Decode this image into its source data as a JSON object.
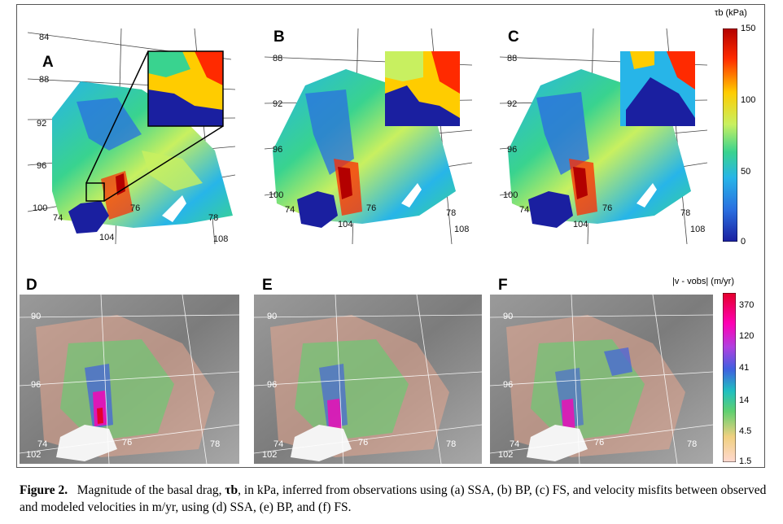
{
  "figure": {
    "panels_top": [
      "A",
      "B",
      "C"
    ],
    "panels_bottom": [
      "D",
      "E",
      "F"
    ],
    "top_lat_labels": [
      "84",
      "88",
      "92",
      "96",
      "100"
    ],
    "top_lon_labels": [
      "74",
      "76",
      "78",
      "104",
      "108"
    ],
    "bottom_lat_labels": [
      "90",
      "96",
      "102"
    ],
    "bottom_lon_labels": [
      "74",
      "76",
      "78"
    ],
    "colorbar_top": {
      "title": "τb (kPa)",
      "ticks": [
        "150",
        "100",
        "50",
        "0"
      ],
      "colors": [
        "#b30000",
        "#ff2a00",
        "#ffcc00",
        "#c8f060",
        "#39d38f",
        "#27b5e8",
        "#2a6fe0",
        "#1a1fa0"
      ]
    },
    "colorbar_bottom": {
      "title": "|v - vobs| (m/yr)",
      "ticks": [
        "370",
        "120",
        "41",
        "14",
        "4.5",
        "1.5"
      ],
      "colors": [
        "#e5002a",
        "#ff00b4",
        "#b040e0",
        "#4060e0",
        "#20c0c0",
        "#60d070",
        "#f0d080",
        "#ffd8d0"
      ]
    }
  },
  "caption": {
    "label": "Figure 2.",
    "text_1": "Magnitude of the basal drag,",
    "symbol": "τb",
    "text_2": ", in kPa, inferred from observations using (a) SSA, (b) BP, (c) FS, and velocity misfits between observed and modeled velocities in m/yr, using (d) SSA, (e) BP, and (f) FS."
  }
}
